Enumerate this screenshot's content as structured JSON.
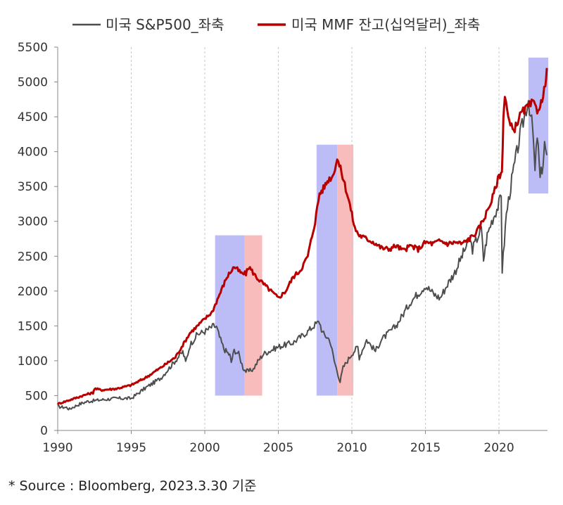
{
  "chart_data": {
    "type": "line",
    "title": "",
    "xlabel": "",
    "ylabel": "",
    "xlim": [
      1990,
      2023.3
    ],
    "ylim": [
      0,
      5500
    ],
    "x_ticks": [
      1990,
      1995,
      2000,
      2005,
      2010,
      2015,
      2020
    ],
    "y_ticks": [
      0,
      500,
      1000,
      1500,
      2000,
      2500,
      3000,
      3500,
      4000,
      4500,
      5000,
      5500
    ],
    "grid": "vertical dashed",
    "legend_position": "top",
    "series": [
      {
        "name": "미국 S&P500_좌축",
        "color": "#4d4d4d",
        "points": [
          [
            1990.0,
            340
          ],
          [
            1990.6,
            330
          ],
          [
            1990.8,
            305
          ],
          [
            1991.0,
            330
          ],
          [
            1991.5,
            380
          ],
          [
            1992.0,
            415
          ],
          [
            1993.0,
            440
          ],
          [
            1994.0,
            460
          ],
          [
            1995.0,
            460
          ],
          [
            1996.0,
            615
          ],
          [
            1997.0,
            750
          ],
          [
            1997.8,
            950
          ],
          [
            1998.5,
            1130
          ],
          [
            1998.7,
            980
          ],
          [
            1999.0,
            1230
          ],
          [
            1999.5,
            1380
          ],
          [
            2000.0,
            1420
          ],
          [
            2000.6,
            1500
          ],
          [
            2000.8,
            1480
          ],
          [
            2001.0,
            1340
          ],
          [
            2001.3,
            1170
          ],
          [
            2001.7,
            1080
          ],
          [
            2001.8,
            980
          ],
          [
            2002.0,
            1150
          ],
          [
            2002.3,
            1100
          ],
          [
            2002.6,
            900
          ],
          [
            2002.8,
            850
          ],
          [
            2003.0,
            850
          ],
          [
            2003.3,
            880
          ],
          [
            2003.6,
            990
          ],
          [
            2004.0,
            1100
          ],
          [
            2005.0,
            1200
          ],
          [
            2006.0,
            1260
          ],
          [
            2007.0,
            1420
          ],
          [
            2007.5,
            1520
          ],
          [
            2007.8,
            1560
          ],
          [
            2008.0,
            1400
          ],
          [
            2008.5,
            1300
          ],
          [
            2008.8,
            1000
          ],
          [
            2009.0,
            850
          ],
          [
            2009.2,
            700
          ],
          [
            2009.4,
            900
          ],
          [
            2010.0,
            1100
          ],
          [
            2010.4,
            1200
          ],
          [
            2010.5,
            1050
          ],
          [
            2011.0,
            1300
          ],
          [
            2011.6,
            1140
          ],
          [
            2012.0,
            1300
          ],
          [
            2013.0,
            1500
          ],
          [
            2014.0,
            1850
          ],
          [
            2015.0,
            2080
          ],
          [
            2015.6,
            1950
          ],
          [
            2016.0,
            1900
          ],
          [
            2016.5,
            2100
          ],
          [
            2017.0,
            2270
          ],
          [
            2018.0,
            2750
          ],
          [
            2018.2,
            2600
          ],
          [
            2018.8,
            2900
          ],
          [
            2018.95,
            2450
          ],
          [
            2019.2,
            2800
          ],
          [
            2019.5,
            3000
          ],
          [
            2020.0,
            3250
          ],
          [
            2020.15,
            3350
          ],
          [
            2020.22,
            2300
          ],
          [
            2020.5,
            3100
          ],
          [
            2020.8,
            3500
          ],
          [
            2021.0,
            3750
          ],
          [
            2021.5,
            4300
          ],
          [
            2022.0,
            4750
          ],
          [
            2022.3,
            4300
          ],
          [
            2022.45,
            3700
          ],
          [
            2022.6,
            4250
          ],
          [
            2022.8,
            3600
          ],
          [
            2023.0,
            3850
          ],
          [
            2023.1,
            4100
          ],
          [
            2023.25,
            3950
          ]
        ]
      },
      {
        "name": "미국 MMF 잔고(십억달러)_좌축",
        "color": "#b80000",
        "points": [
          [
            1990.0,
            380
          ],
          [
            1991.0,
            450
          ],
          [
            1992.0,
            520
          ],
          [
            1992.4,
            540
          ],
          [
            1992.5,
            600
          ],
          [
            1993.0,
            580
          ],
          [
            1994.0,
            600
          ],
          [
            1995.0,
            650
          ],
          [
            1996.0,
            760
          ],
          [
            1997.0,
            900
          ],
          [
            1998.0,
            1050
          ],
          [
            1999.0,
            1400
          ],
          [
            2000.0,
            1600
          ],
          [
            2000.5,
            1700
          ],
          [
            2001.0,
            1950
          ],
          [
            2001.5,
            2200
          ],
          [
            2002.0,
            2350
          ],
          [
            2002.5,
            2250
          ],
          [
            2002.8,
            2250
          ],
          [
            2003.0,
            2350
          ],
          [
            2003.5,
            2200
          ],
          [
            2004.0,
            2100
          ],
          [
            2004.5,
            2000
          ],
          [
            2005.0,
            1900
          ],
          [
            2005.5,
            2000
          ],
          [
            2006.0,
            2200
          ],
          [
            2006.5,
            2300
          ],
          [
            2007.0,
            2500
          ],
          [
            2007.5,
            3000
          ],
          [
            2007.8,
            3400
          ],
          [
            2008.0,
            3450
          ],
          [
            2008.4,
            3600
          ],
          [
            2008.7,
            3650
          ],
          [
            2009.0,
            3900
          ],
          [
            2009.3,
            3700
          ],
          [
            2009.8,
            3300
          ],
          [
            2010.2,
            2900
          ],
          [
            2010.5,
            2800
          ],
          [
            2011.0,
            2750
          ],
          [
            2011.5,
            2700
          ],
          [
            2012.0,
            2620
          ],
          [
            2012.5,
            2600
          ],
          [
            2013.0,
            2650
          ],
          [
            2013.5,
            2580
          ],
          [
            2014.0,
            2650
          ],
          [
            2014.5,
            2600
          ],
          [
            2015.0,
            2700
          ],
          [
            2015.5,
            2680
          ],
          [
            2016.0,
            2720
          ],
          [
            2016.5,
            2680
          ],
          [
            2017.0,
            2700
          ],
          [
            2017.5,
            2680
          ],
          [
            2018.0,
            2750
          ],
          [
            2018.5,
            2850
          ],
          [
            2019.0,
            3050
          ],
          [
            2019.5,
            3300
          ],
          [
            2020.0,
            3650
          ],
          [
            2020.2,
            3700
          ],
          [
            2020.3,
            4500
          ],
          [
            2020.4,
            4800
          ],
          [
            2020.7,
            4400
          ],
          [
            2021.0,
            4300
          ],
          [
            2021.5,
            4550
          ],
          [
            2022.0,
            4650
          ],
          [
            2022.3,
            4700
          ],
          [
            2022.6,
            4600
          ],
          [
            2023.0,
            4750
          ],
          [
            2023.15,
            5000
          ],
          [
            2023.25,
            5200
          ]
        ]
      }
    ],
    "highlight_regions": [
      {
        "fill": "#b0b0f4",
        "x": [
          2000.7,
          2002.7
        ],
        "y": [
          500,
          2800
        ]
      },
      {
        "fill": "#f8b0b0",
        "x": [
          2002.7,
          2003.9
        ],
        "y": [
          500,
          2800
        ]
      },
      {
        "fill": "#b0b0f4",
        "x": [
          2007.6,
          2009.0
        ],
        "y": [
          500,
          4100
        ]
      },
      {
        "fill": "#f8b0b0",
        "x": [
          2009.0,
          2010.1
        ],
        "y": [
          500,
          4100
        ]
      },
      {
        "fill": "#b0b0f4",
        "x": [
          2022.0,
          2023.35
        ],
        "y": [
          3400,
          5350
        ]
      }
    ]
  },
  "footer": {
    "source": "* Source : Bloomberg, 2023.3.30 기준"
  }
}
